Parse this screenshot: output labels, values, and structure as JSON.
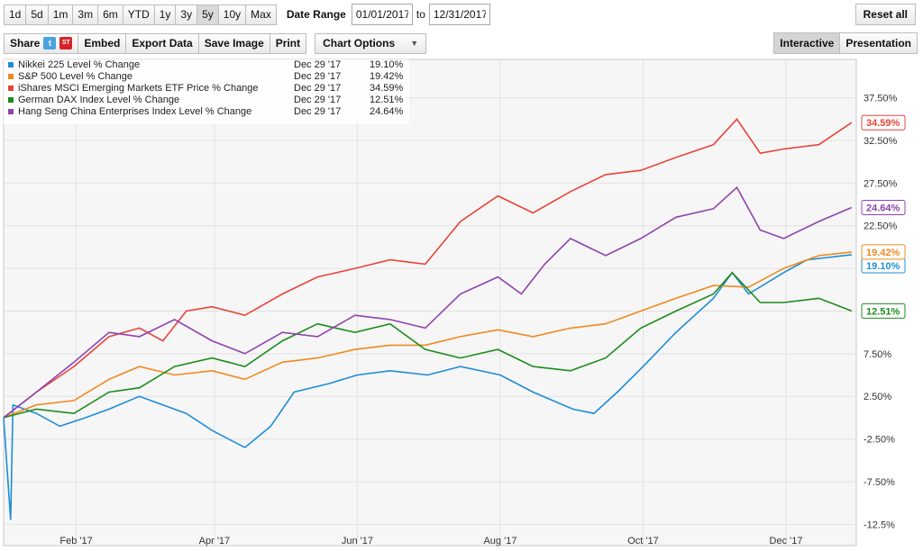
{
  "toolbar": {
    "ranges": [
      {
        "label": "1d",
        "active": false
      },
      {
        "label": "5d",
        "active": false
      },
      {
        "label": "1m",
        "active": false
      },
      {
        "label": "3m",
        "active": false
      },
      {
        "label": "6m",
        "active": false
      },
      {
        "label": "YTD",
        "active": false
      },
      {
        "label": "1y",
        "active": false
      },
      {
        "label": "3y",
        "active": false
      },
      {
        "label": "5y",
        "active": true
      },
      {
        "label": "10y",
        "active": false
      },
      {
        "label": "Max",
        "active": false
      }
    ],
    "date_range_label": "Date Range",
    "start_date": "01/01/2017",
    "to_label": "to",
    "end_date": "12/31/2017",
    "reset_label": "Reset all",
    "share_label": "Share",
    "twitter_icon": "t",
    "stocktwits_icon": "ST",
    "embed_label": "Embed",
    "export_label": "Export Data",
    "save_image_label": "Save Image",
    "print_label": "Print",
    "chart_options_label": "Chart Options",
    "interactive_label": "Interactive",
    "presentation_label": "Presentation"
  },
  "chart_data": {
    "type": "line",
    "title": "",
    "xlabel": "",
    "ylabel": "",
    "ylim": [
      -15,
      42
    ],
    "y_ticks": [
      "37.50%",
      "32.50%",
      "27.50%",
      "22.50%",
      "17.50%",
      "12.50%",
      "7.50%",
      "2.50%",
      "-2.50%",
      "-7.50%",
      "-12.5%"
    ],
    "y_tick_values": [
      37.5,
      32.5,
      27.5,
      22.5,
      17.5,
      12.5,
      7.5,
      2.5,
      -2.5,
      -7.5,
      -12.5
    ],
    "x_ticks": [
      "Feb '17",
      "Apr '17",
      "Jun '17",
      "Aug '17",
      "Oct '17",
      "Dec '17"
    ],
    "x_tick_values": [
      "2017-02-01",
      "2017-04-01",
      "2017-06-01",
      "2017-08-01",
      "2017-10-01",
      "2017-12-01"
    ],
    "xlim": [
      "2017-01-01",
      "2017-12-31"
    ],
    "grid": true,
    "legend_position": "top-left",
    "series": [
      {
        "name": "Nikkei 225 Level % Change",
        "date": "Dec 29 '17",
        "last_value": "19.10%",
        "end_label": "19.10%",
        "color": "#1f8dd6",
        "points": [
          [
            "2017-01-01",
            0
          ],
          [
            "2017-01-04",
            -12
          ],
          [
            "2017-01-05",
            1.5
          ],
          [
            "2017-01-15",
            0.5
          ],
          [
            "2017-01-25",
            -1
          ],
          [
            "2017-02-05",
            0
          ],
          [
            "2017-02-15",
            1
          ],
          [
            "2017-02-28",
            2.5
          ],
          [
            "2017-03-10",
            1.5
          ],
          [
            "2017-03-20",
            0.5
          ],
          [
            "2017-03-31",
            -1.5
          ],
          [
            "2017-04-14",
            -3.5
          ],
          [
            "2017-04-25",
            -1
          ],
          [
            "2017-05-05",
            3
          ],
          [
            "2017-05-20",
            4
          ],
          [
            "2017-06-01",
            5
          ],
          [
            "2017-06-15",
            5.5
          ],
          [
            "2017-07-01",
            5
          ],
          [
            "2017-07-15",
            6
          ],
          [
            "2017-08-01",
            5
          ],
          [
            "2017-08-15",
            3
          ],
          [
            "2017-09-01",
            1
          ],
          [
            "2017-09-10",
            0.5
          ],
          [
            "2017-09-20",
            3
          ],
          [
            "2017-10-01",
            6
          ],
          [
            "2017-10-15",
            10
          ],
          [
            "2017-10-31",
            14
          ],
          [
            "2017-11-08",
            17
          ],
          [
            "2017-11-15",
            14.5
          ],
          [
            "2017-11-30",
            17
          ],
          [
            "2017-12-10",
            18.5
          ],
          [
            "2017-12-29",
            19.1
          ]
        ]
      },
      {
        "name": "S&P 500 Level % Change",
        "date": "Dec 29 '17",
        "last_value": "19.42%",
        "end_label": "19.42%",
        "color": "#f0891e",
        "points": [
          [
            "2017-01-01",
            0
          ],
          [
            "2017-01-15",
            1.5
          ],
          [
            "2017-01-31",
            2
          ],
          [
            "2017-02-15",
            4.5
          ],
          [
            "2017-02-28",
            6
          ],
          [
            "2017-03-15",
            5
          ],
          [
            "2017-03-31",
            5.5
          ],
          [
            "2017-04-14",
            4.5
          ],
          [
            "2017-04-30",
            6.5
          ],
          [
            "2017-05-15",
            7
          ],
          [
            "2017-05-31",
            8
          ],
          [
            "2017-06-15",
            8.5
          ],
          [
            "2017-06-30",
            8.5
          ],
          [
            "2017-07-15",
            9.5
          ],
          [
            "2017-07-31",
            10.3
          ],
          [
            "2017-08-15",
            9.5
          ],
          [
            "2017-08-31",
            10.5
          ],
          [
            "2017-09-15",
            11
          ],
          [
            "2017-09-30",
            12.5
          ],
          [
            "2017-10-15",
            14
          ],
          [
            "2017-10-31",
            15.5
          ],
          [
            "2017-11-15",
            15.3
          ],
          [
            "2017-11-30",
            17.5
          ],
          [
            "2017-12-15",
            19
          ],
          [
            "2017-12-29",
            19.42
          ]
        ]
      },
      {
        "name": "iShares MSCI Emerging Markets ETF Price % Change",
        "date": "Dec 29 '17",
        "last_value": "34.59%",
        "end_label": "34.59%",
        "color": "#e8443a",
        "points": [
          [
            "2017-01-01",
            0
          ],
          [
            "2017-01-15",
            3
          ],
          [
            "2017-01-31",
            6
          ],
          [
            "2017-02-15",
            9.5
          ],
          [
            "2017-02-28",
            10.5
          ],
          [
            "2017-03-10",
            9
          ],
          [
            "2017-03-20",
            12.5
          ],
          [
            "2017-03-31",
            13
          ],
          [
            "2017-04-14",
            12
          ],
          [
            "2017-04-30",
            14.5
          ],
          [
            "2017-05-15",
            16.5
          ],
          [
            "2017-05-31",
            17.5
          ],
          [
            "2017-06-15",
            18.5
          ],
          [
            "2017-06-30",
            18
          ],
          [
            "2017-07-15",
            23
          ],
          [
            "2017-07-31",
            26
          ],
          [
            "2017-08-15",
            24
          ],
          [
            "2017-08-31",
            26.5
          ],
          [
            "2017-09-15",
            28.5
          ],
          [
            "2017-09-30",
            29
          ],
          [
            "2017-10-15",
            30.5
          ],
          [
            "2017-10-31",
            32
          ],
          [
            "2017-11-10",
            35
          ],
          [
            "2017-11-20",
            31
          ],
          [
            "2017-11-30",
            31.5
          ],
          [
            "2017-12-15",
            32
          ],
          [
            "2017-12-29",
            34.59
          ]
        ]
      },
      {
        "name": "German DAX Index Level % Change",
        "date": "Dec 29 '17",
        "last_value": "12.51%",
        "end_label": "12.51%",
        "color": "#1c8c1c",
        "points": [
          [
            "2017-01-01",
            0
          ],
          [
            "2017-01-15",
            1
          ],
          [
            "2017-01-31",
            0.5
          ],
          [
            "2017-02-15",
            3
          ],
          [
            "2017-02-28",
            3.5
          ],
          [
            "2017-03-15",
            6
          ],
          [
            "2017-03-31",
            7
          ],
          [
            "2017-04-14",
            6
          ],
          [
            "2017-04-30",
            9
          ],
          [
            "2017-05-15",
            11
          ],
          [
            "2017-05-31",
            10
          ],
          [
            "2017-06-15",
            11
          ],
          [
            "2017-06-30",
            8
          ],
          [
            "2017-07-15",
            7
          ],
          [
            "2017-07-31",
            8
          ],
          [
            "2017-08-15",
            6
          ],
          [
            "2017-08-31",
            5.5
          ],
          [
            "2017-09-15",
            7
          ],
          [
            "2017-09-30",
            10.5
          ],
          [
            "2017-10-15",
            12.5
          ],
          [
            "2017-10-31",
            14.5
          ],
          [
            "2017-11-08",
            17
          ],
          [
            "2017-11-20",
            13.5
          ],
          [
            "2017-11-30",
            13.5
          ],
          [
            "2017-12-15",
            14
          ],
          [
            "2017-12-29",
            12.51
          ]
        ]
      },
      {
        "name": "Hang Seng China Enterprises Index Level % Change",
        "date": "Dec 29 '17",
        "last_value": "24.64%",
        "end_label": "24.64%",
        "color": "#8e44ad",
        "points": [
          [
            "2017-01-01",
            0
          ],
          [
            "2017-01-15",
            3
          ],
          [
            "2017-01-31",
            6.5
          ],
          [
            "2017-02-15",
            10
          ],
          [
            "2017-02-28",
            9.5
          ],
          [
            "2017-03-15",
            11.5
          ],
          [
            "2017-03-31",
            9
          ],
          [
            "2017-04-14",
            7.5
          ],
          [
            "2017-04-30",
            10
          ],
          [
            "2017-05-15",
            9.5
          ],
          [
            "2017-05-31",
            12
          ],
          [
            "2017-06-15",
            11.5
          ],
          [
            "2017-06-30",
            10.5
          ],
          [
            "2017-07-15",
            14.5
          ],
          [
            "2017-07-31",
            16.5
          ],
          [
            "2017-08-10",
            14.5
          ],
          [
            "2017-08-20",
            18
          ],
          [
            "2017-08-31",
            21
          ],
          [
            "2017-09-15",
            19
          ],
          [
            "2017-09-30",
            21
          ],
          [
            "2017-10-15",
            23.5
          ],
          [
            "2017-10-31",
            24.5
          ],
          [
            "2017-11-10",
            27
          ],
          [
            "2017-11-20",
            22
          ],
          [
            "2017-11-30",
            21
          ],
          [
            "2017-12-15",
            23
          ],
          [
            "2017-12-29",
            24.64
          ]
        ]
      }
    ]
  }
}
